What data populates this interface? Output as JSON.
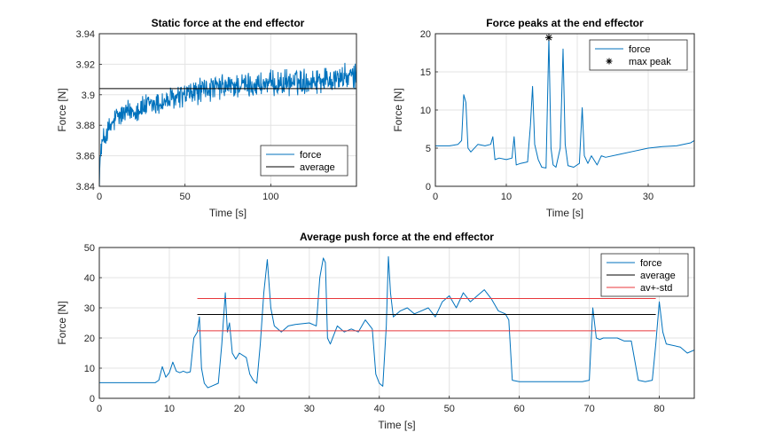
{
  "colors": {
    "force": "#0072BD",
    "average": "#000000",
    "std": "#E8383B",
    "marker": "#000000"
  },
  "chart_data": [
    {
      "type": "line",
      "title": "Static force at the end effector",
      "xlabel": "Time [s]",
      "ylabel": "Force [N]",
      "xlim": [
        0,
        150
      ],
      "ylim": [
        3.84,
        3.94
      ],
      "xticks": [
        0,
        50,
        100
      ],
      "yticks": [
        3.84,
        3.86,
        3.88,
        3.9,
        3.92,
        3.94
      ],
      "yticklabels": [
        "3.84",
        "3.86",
        "3.88",
        "3.9",
        "3.92",
        "3.94"
      ],
      "grid": true,
      "legend": "bottom-right",
      "series": [
        {
          "name": "force",
          "kind": "noisy",
          "x": [
            0,
            1,
            3,
            10,
            20,
            40,
            60,
            80,
            100,
            120,
            150
          ],
          "y": [
            3.845,
            3.865,
            3.872,
            3.885,
            3.89,
            3.896,
            3.903,
            3.906,
            3.907,
            3.909,
            3.912
          ],
          "noise": 0.007
        },
        {
          "name": "average",
          "kind": "hline",
          "y": 3.904
        }
      ]
    },
    {
      "type": "line",
      "title": "Force peaks at the end effector",
      "xlabel": "Time [s]",
      "ylabel": "Force [N]",
      "xlim": [
        0,
        36.5
      ],
      "ylim": [
        0,
        20
      ],
      "xticks": [
        0,
        10,
        20,
        30
      ],
      "yticks": [
        0,
        5,
        10,
        15,
        20
      ],
      "grid": true,
      "legend": "top-right",
      "series": [
        {
          "name": "force",
          "kind": "line",
          "x": [
            0,
            2,
            3.2,
            3.7,
            4.0,
            4.3,
            4.6,
            5.0,
            6,
            7,
            7.8,
            8.1,
            8.4,
            9,
            10,
            10.8,
            11.1,
            11.4,
            12,
            13,
            13.4,
            13.7,
            14.0,
            14.5,
            15,
            15.6,
            16.0,
            16.3,
            16.6,
            17,
            17.6,
            18.0,
            18.3,
            18.7,
            19.5,
            20.3,
            20.7,
            21.0,
            21.5,
            22,
            22.8,
            23.4,
            24,
            26,
            28,
            30,
            32,
            34,
            36,
            36.5
          ],
          "y": [
            5.3,
            5.3,
            5.5,
            6.0,
            12.0,
            11.0,
            5.0,
            4.5,
            5.5,
            5.3,
            5.5,
            6.5,
            3.5,
            3.7,
            3.5,
            3.7,
            6.5,
            2.8,
            3.0,
            3.2,
            8.0,
            13.1,
            5.5,
            3.5,
            2.5,
            2.4,
            19.5,
            5.0,
            2.8,
            2.5,
            5.0,
            18.0,
            5.5,
            2.7,
            2.5,
            3.0,
            10.3,
            4.0,
            3.0,
            4.0,
            2.8,
            4.0,
            3.8,
            4.2,
            4.6,
            5.0,
            5.2,
            5.3,
            5.7,
            6.0
          ]
        },
        {
          "name": "max peak",
          "kind": "marker",
          "x": [
            16.0
          ],
          "y": [
            19.5
          ]
        }
      ]
    },
    {
      "type": "line",
      "title": "Average push force at the end effector",
      "xlabel": "Time [s]",
      "ylabel": "Force [N]",
      "xlim": [
        0,
        85
      ],
      "ylim": [
        0,
        50
      ],
      "xticks": [
        0,
        10,
        20,
        30,
        40,
        50,
        60,
        70,
        80
      ],
      "yticks": [
        0,
        10,
        20,
        30,
        40,
        50
      ],
      "grid": true,
      "legend": "top-right",
      "series": [
        {
          "name": "force",
          "kind": "line",
          "x": [
            0,
            8,
            8.5,
            9,
            9.5,
            10,
            10.5,
            11,
            11.5,
            12,
            12.5,
            13,
            13.5,
            14,
            14.3,
            14.6,
            15,
            15.5,
            16,
            17,
            17.5,
            18,
            18.3,
            18.6,
            19,
            19.5,
            20,
            21,
            21.5,
            22,
            22.5,
            23,
            23.5,
            24,
            24.5,
            25,
            26,
            27,
            28,
            30,
            31,
            31.5,
            32,
            32.3,
            32.6,
            33,
            34,
            35,
            36,
            37,
            38,
            39,
            39.5,
            40,
            40.5,
            41,
            41.3,
            41.6,
            42,
            43,
            44,
            45,
            46,
            47,
            48,
            49,
            50,
            51,
            52,
            53,
            54,
            55,
            56,
            57,
            58,
            58.5,
            59,
            60,
            65,
            69,
            70,
            70.5,
            71,
            71.5,
            72,
            74,
            75,
            76,
            77,
            78,
            79,
            79.5,
            80,
            80.5,
            81,
            83,
            84,
            85
          ],
          "y": [
            5.2,
            5.2,
            6.0,
            10.5,
            7.0,
            8.5,
            12.0,
            9.0,
            8.5,
            9.0,
            8.5,
            8.8,
            20.0,
            22.0,
            27.0,
            10.0,
            5.0,
            3.5,
            4.0,
            5.0,
            18.0,
            35.0,
            22.0,
            25.0,
            15.0,
            13.0,
            15.0,
            13.5,
            8.0,
            6.0,
            5.0,
            18.0,
            35.0,
            46.0,
            30.0,
            24.0,
            22.0,
            24.0,
            24.5,
            25.0,
            24.0,
            40.0,
            46.5,
            45.0,
            20.0,
            18.0,
            24.0,
            22.0,
            23.0,
            22.0,
            26.0,
            23.0,
            8.0,
            5.0,
            4.0,
            24.0,
            47.0,
            35.0,
            27.0,
            29.0,
            30.0,
            28.0,
            29.0,
            30.0,
            27.0,
            32.0,
            34.0,
            30.0,
            35.0,
            32.0,
            34.0,
            36.0,
            33.0,
            29.0,
            28.0,
            26.0,
            6.0,
            5.5,
            5.5,
            5.5,
            6.0,
            30.0,
            20.0,
            19.5,
            20.0,
            20.0,
            19.0,
            19.0,
            6.0,
            5.5,
            6.0,
            18.0,
            32.0,
            22.0,
            18.0,
            17.0,
            15.0,
            16.0
          ]
        },
        {
          "name": "average",
          "kind": "segment",
          "x": [
            14,
            79.5
          ],
          "y": 27.8
        },
        {
          "name": "av+-std",
          "kind": "segment2",
          "x": [
            14,
            79.5
          ],
          "y": [
            33.1,
            22.4
          ]
        }
      ]
    }
  ]
}
